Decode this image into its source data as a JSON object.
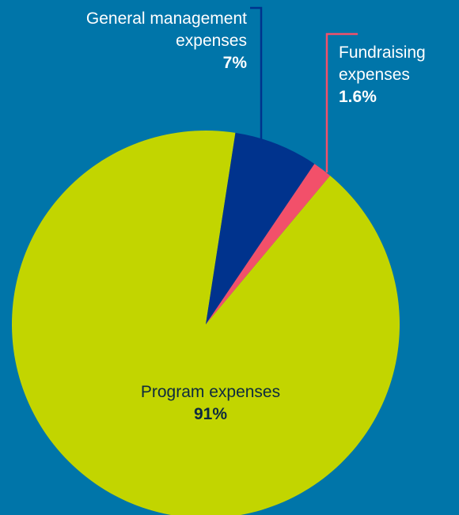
{
  "chart_data": {
    "type": "pie",
    "slices": [
      {
        "label": "Program expenses",
        "value": 91,
        "display": "91%",
        "color": "#c2d500"
      },
      {
        "label": "General management expenses",
        "value": 7,
        "display": "7%",
        "color": "#00338d"
      },
      {
        "label": "Fundraising expenses",
        "value": 1.6,
        "display": "1.6%",
        "color": "#f2506a"
      }
    ],
    "background": "#0075a9",
    "legend": "none"
  }
}
